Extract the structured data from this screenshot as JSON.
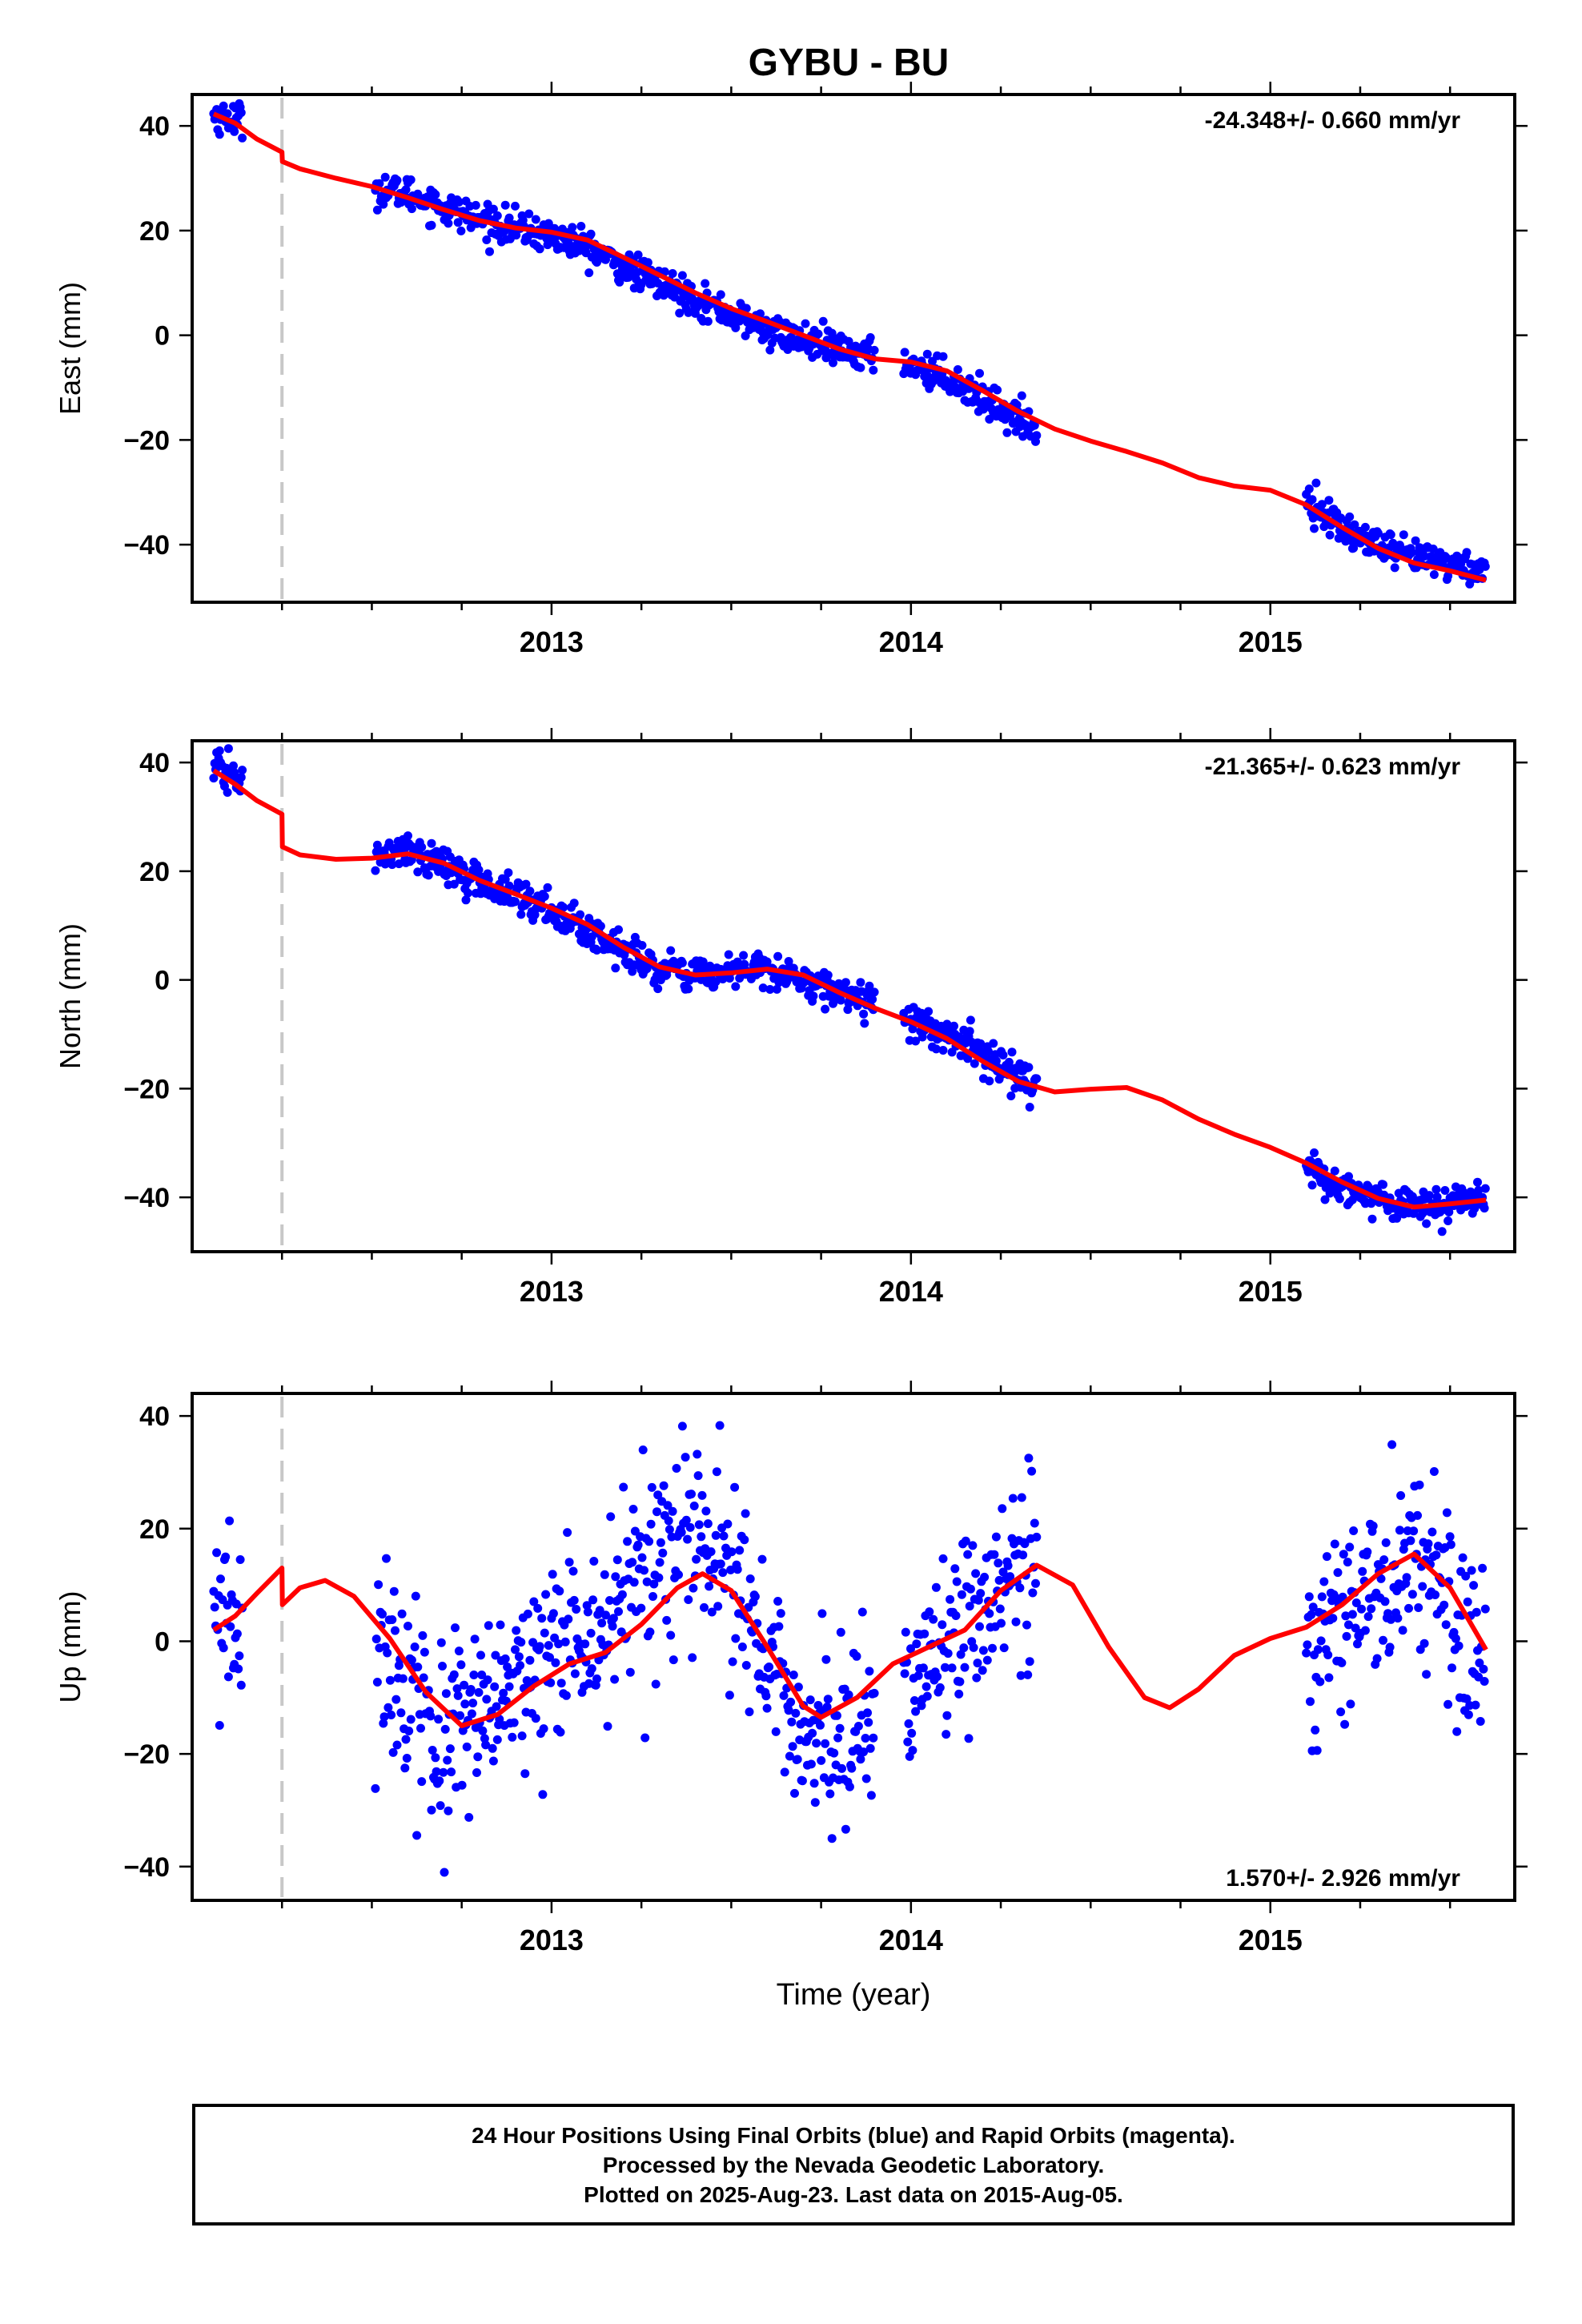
{
  "title": "GYBU - BU",
  "footer": {
    "line1": "24 Hour Positions Using Final Orbits (blue) and Rapid Orbits (magenta).",
    "line2": "Processed by the Nevada Geodetic Laboratory.",
    "line3": "Plotted on 2025-Aug-23. Last data on 2015-Aug-05."
  },
  "colors": {
    "data": "#0000ff",
    "model": "#ff0000",
    "event": "#c8c8c8",
    "frame": "#000000"
  },
  "chart_data": [
    {
      "type": "scatter",
      "id": "east",
      "ylabel": "East (mm)",
      "xlabel": "",
      "rate_text": "-24.348+/- 0.660 mm/yr",
      "rate_position": "top-right",
      "xlim": [
        2012.0,
        2015.68
      ],
      "ylim": [
        -51,
        46
      ],
      "x_ticks": [
        2013,
        2014,
        2015
      ],
      "x_tick_labels": [
        "2013",
        "2014",
        "2015"
      ],
      "y_ticks": [
        40,
        20,
        0,
        -20,
        -40
      ],
      "y_tick_labels": [
        "40",
        "20",
        "0",
        "−20",
        "−40"
      ],
      "event_line_x": 2012.25,
      "grid": false,
      "data_segments": [
        [
          2012.06,
          2012.14,
          [
            [
              2012.06,
              42
            ],
            [
              2012.14,
              41
            ]
          ]
        ],
        [
          2012.51,
          2013.9,
          [
            [
              2012.51,
              28
            ],
            [
              2012.6,
              27
            ],
            [
              2012.8,
              22
            ],
            [
              2013.0,
              19
            ],
            [
              2013.1,
              17
            ],
            [
              2013.2,
              13
            ],
            [
              2013.4,
              7
            ],
            [
              2013.6,
              1
            ],
            [
              2013.8,
              -3
            ],
            [
              2013.9,
              -4
            ]
          ]
        ],
        [
          2013.98,
          2014.35,
          [
            [
              2013.98,
              -5
            ],
            [
              2014.1,
              -8
            ],
            [
              2014.2,
              -12
            ],
            [
              2014.35,
              -18
            ]
          ]
        ],
        [
          2015.1,
          2015.6,
          [
            [
              2015.1,
              -31
            ],
            [
              2015.2,
              -37
            ],
            [
              2015.35,
              -42
            ],
            [
              2015.45,
              -43
            ],
            [
              2015.6,
              -45
            ]
          ]
        ]
      ],
      "data_noise": 1.6,
      "model_curve": [
        [
          2012.06,
          42.3
        ],
        [
          2012.12,
          40.5
        ],
        [
          2012.18,
          37.5
        ],
        [
          2012.25,
          35.0
        ],
        [
          2012.251,
          33.2
        ],
        [
          2012.3,
          31.8
        ],
        [
          2012.4,
          30.0
        ],
        [
          2012.5,
          28.4
        ],
        [
          2012.6,
          26.3
        ],
        [
          2012.7,
          24.0
        ],
        [
          2012.8,
          21.9
        ],
        [
          2012.9,
          20.5
        ],
        [
          2013.0,
          19.7
        ],
        [
          2013.1,
          18.2
        ],
        [
          2013.2,
          14.9
        ],
        [
          2013.3,
          11.5
        ],
        [
          2013.4,
          8.1
        ],
        [
          2013.5,
          5.1
        ],
        [
          2013.6,
          2.6
        ],
        [
          2013.7,
          0.0
        ],
        [
          2013.8,
          -2.6
        ],
        [
          2013.9,
          -4.5
        ],
        [
          2014.0,
          -5.1
        ],
        [
          2014.1,
          -6.8
        ],
        [
          2014.2,
          -10.6
        ],
        [
          2014.3,
          -14.6
        ],
        [
          2014.4,
          -17.9
        ],
        [
          2014.5,
          -20.2
        ],
        [
          2014.6,
          -22.2
        ],
        [
          2014.7,
          -24.4
        ],
        [
          2014.8,
          -27.2
        ],
        [
          2014.9,
          -28.8
        ],
        [
          2015.0,
          -29.6
        ],
        [
          2015.1,
          -32.4
        ],
        [
          2015.2,
          -36.7
        ],
        [
          2015.3,
          -40.7
        ],
        [
          2015.4,
          -43.5
        ],
        [
          2015.5,
          -45.0
        ],
        [
          2015.6,
          -46.8
        ]
      ]
    },
    {
      "type": "scatter",
      "id": "north",
      "ylabel": "North (mm)",
      "xlabel": "",
      "rate_text": "-21.365+/- 0.623 mm/yr",
      "rate_position": "top-right",
      "xlim": [
        2012.0,
        2015.68
      ],
      "ylim": [
        -50,
        44
      ],
      "x_ticks": [
        2013,
        2014,
        2015
      ],
      "x_tick_labels": [
        "2013",
        "2014",
        "2015"
      ],
      "y_ticks": [
        40,
        20,
        0,
        -20,
        -40
      ],
      "y_tick_labels": [
        "40",
        "20",
        "0",
        "−20",
        "−40"
      ],
      "event_line_x": 2012.25,
      "grid": false,
      "data_segments": [
        [
          2012.06,
          2012.14,
          [
            [
              2012.06,
              39
            ],
            [
              2012.14,
              37
            ]
          ]
        ],
        [
          2012.51,
          2013.9,
          [
            [
              2012.51,
              22
            ],
            [
              2012.6,
              24
            ],
            [
              2012.7,
              21
            ],
            [
              2012.8,
              18
            ],
            [
              2013.0,
              13
            ],
            [
              2013.2,
              5
            ],
            [
              2013.3,
              2
            ],
            [
              2013.4,
              1
            ],
            [
              2013.6,
              2
            ],
            [
              2013.7,
              0
            ],
            [
              2013.9,
              -4
            ]
          ]
        ],
        [
          2013.98,
          2014.35,
          [
            [
              2013.98,
              -7
            ],
            [
              2014.1,
              -10
            ],
            [
              2014.2,
              -14
            ],
            [
              2014.35,
              -20
            ]
          ]
        ],
        [
          2015.1,
          2015.6,
          [
            [
              2015.1,
              -35
            ],
            [
              2015.2,
              -38
            ],
            [
              2015.35,
              -41
            ],
            [
              2015.45,
              -42
            ],
            [
              2015.6,
              -40
            ]
          ]
        ]
      ],
      "data_noise": 1.6,
      "model_curve": [
        [
          2012.06,
          38.5
        ],
        [
          2012.12,
          36.0
        ],
        [
          2012.18,
          33.0
        ],
        [
          2012.25,
          30.5
        ],
        [
          2012.251,
          24.5
        ],
        [
          2012.3,
          23.0
        ],
        [
          2012.4,
          22.2
        ],
        [
          2012.5,
          22.4
        ],
        [
          2012.6,
          23.2
        ],
        [
          2012.7,
          21.5
        ],
        [
          2012.8,
          18.3
        ],
        [
          2012.9,
          15.8
        ],
        [
          2013.0,
          13.2
        ],
        [
          2013.1,
          10.2
        ],
        [
          2013.2,
          6.0
        ],
        [
          2013.3,
          2.4
        ],
        [
          2013.4,
          0.9
        ],
        [
          2013.5,
          1.3
        ],
        [
          2013.6,
          2.0
        ],
        [
          2013.7,
          0.9
        ],
        [
          2013.8,
          -2.3
        ],
        [
          2013.9,
          -5.2
        ],
        [
          2014.0,
          -7.7
        ],
        [
          2014.1,
          -10.8
        ],
        [
          2014.2,
          -15.0
        ],
        [
          2014.3,
          -18.7
        ],
        [
          2014.4,
          -20.6
        ],
        [
          2014.5,
          -20.1
        ],
        [
          2014.6,
          -19.8
        ],
        [
          2014.7,
          -22.1
        ],
        [
          2014.8,
          -25.6
        ],
        [
          2014.9,
          -28.4
        ],
        [
          2015.0,
          -30.8
        ],
        [
          2015.1,
          -33.7
        ],
        [
          2015.2,
          -37.2
        ],
        [
          2015.3,
          -40.2
        ],
        [
          2015.4,
          -41.8
        ],
        [
          2015.5,
          -41.2
        ],
        [
          2015.6,
          -40.5
        ]
      ]
    },
    {
      "type": "scatter",
      "id": "up",
      "ylabel": "Up (mm)",
      "xlabel": "Time (year)",
      "rate_text": "1.570+/- 2.926 mm/yr",
      "rate_position": "bottom-right",
      "xlim": [
        2012.0,
        2015.68
      ],
      "ylim": [
        -46,
        44
      ],
      "x_ticks": [
        2013,
        2014,
        2015
      ],
      "x_tick_labels": [
        "2013",
        "2014",
        "2015"
      ],
      "y_ticks": [
        40,
        20,
        0,
        -20,
        -40
      ],
      "y_tick_labels": [
        "40",
        "20",
        "0",
        "−20",
        "−40"
      ],
      "event_line_x": 2012.25,
      "grid": false,
      "data_segments": [
        [
          2012.06,
          2012.14,
          [
            [
              2012.06,
              2
            ],
            [
              2012.14,
              3
            ]
          ]
        ],
        [
          2012.51,
          2013.9,
          [
            [
              2012.51,
              4
            ],
            [
              2012.6,
              -10
            ],
            [
              2012.7,
              -18
            ],
            [
              2012.8,
              -15
            ],
            [
              2012.9,
              -8
            ],
            [
              2013.0,
              -3
            ],
            [
              2013.1,
              0
            ],
            [
              2013.2,
              8
            ],
            [
              2013.3,
              14
            ],
            [
              2013.4,
              17
            ],
            [
              2013.5,
              12
            ],
            [
              2013.6,
              -5
            ],
            [
              2013.7,
              -15
            ],
            [
              2013.8,
              -17
            ],
            [
              2013.9,
              -18
            ]
          ]
        ],
        [
          2013.98,
          2014.35,
          [
            [
              2013.98,
              -8
            ],
            [
              2014.1,
              0
            ],
            [
              2014.2,
              6
            ],
            [
              2014.35,
              14
            ]
          ]
        ],
        [
          2015.1,
          2015.6,
          [
            [
              2015.1,
              -2
            ],
            [
              2015.2,
              5
            ],
            [
              2015.3,
              10
            ],
            [
              2015.4,
              16
            ],
            [
              2015.5,
              10
            ],
            [
              2015.6,
              -5
            ]
          ]
        ]
      ],
      "data_noise": 8.5,
      "model_curve": [
        [
          2012.06,
          2.0
        ],
        [
          2012.12,
          4.5
        ],
        [
          2012.18,
          8.5
        ],
        [
          2012.25,
          13.0
        ],
        [
          2012.251,
          6.5
        ],
        [
          2012.3,
          9.5
        ],
        [
          2012.37,
          10.8
        ],
        [
          2012.45,
          8.0
        ],
        [
          2012.55,
          0.5
        ],
        [
          2012.65,
          -9.0
        ],
        [
          2012.75,
          -15.0
        ],
        [
          2012.85,
          -13.0
        ],
        [
          2012.95,
          -8.0
        ],
        [
          2013.05,
          -4.0
        ],
        [
          2013.15,
          -2.0
        ],
        [
          2013.25,
          3.0
        ],
        [
          2013.35,
          9.5
        ],
        [
          2013.42,
          12.0
        ],
        [
          2013.5,
          9.0
        ],
        [
          2013.6,
          -1.0
        ],
        [
          2013.7,
          -11.5
        ],
        [
          2013.75,
          -13.5
        ],
        [
          2013.85,
          -10.0
        ],
        [
          2013.95,
          -4.0
        ],
        [
          2014.05,
          -1.0
        ],
        [
          2014.15,
          2.0
        ],
        [
          2014.25,
          9.0
        ],
        [
          2014.35,
          13.5
        ],
        [
          2014.45,
          10.0
        ],
        [
          2014.55,
          -1.0
        ],
        [
          2014.65,
          -10.0
        ],
        [
          2014.72,
          -11.8
        ],
        [
          2014.8,
          -8.5
        ],
        [
          2014.9,
          -2.5
        ],
        [
          2015.0,
          0.5
        ],
        [
          2015.1,
          2.5
        ],
        [
          2015.2,
          6.5
        ],
        [
          2015.3,
          12.0
        ],
        [
          2015.4,
          15.5
        ],
        [
          2015.5,
          9.5
        ],
        [
          2015.6,
          -1.5
        ]
      ]
    }
  ]
}
